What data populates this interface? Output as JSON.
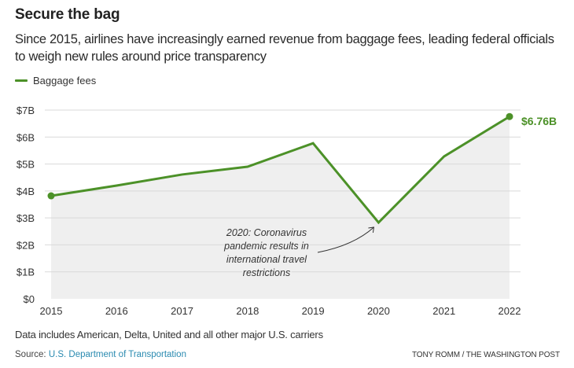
{
  "header": {
    "title": "Secure the bag",
    "subtitle": "Since 2015, airlines have increasingly earned revenue from baggage fees, leading federal officials to weigh new rules around price transparency"
  },
  "legend": {
    "label": "Baggage fees"
  },
  "footer": {
    "note": "Data includes American, Delta, United and all other major U.S. carriers",
    "source_prefix": "Source: ",
    "source_link": "U.S. Department of Transportation",
    "credit": "TONY ROMM / THE WASHINGTON POST"
  },
  "colors": {
    "line": "#4c9128",
    "area": "#efefef",
    "grid": "#d9d9d9",
    "label": "#4c9128"
  },
  "chart_data": {
    "type": "line",
    "title": "Secure the bag",
    "xlabel": "",
    "ylabel": "",
    "x": [
      2015,
      2016,
      2017,
      2018,
      2019,
      2020,
      2021,
      2022
    ],
    "series": [
      {
        "name": "Baggage fees",
        "values": [
          3.82,
          4.2,
          4.61,
          4.9,
          5.77,
          2.83,
          5.28,
          6.76
        ]
      }
    ],
    "ylim": [
      0,
      7
    ],
    "yticks": [
      0,
      1,
      2,
      3,
      4,
      5,
      6,
      7
    ],
    "ytick_labels": [
      "$0",
      "$1B",
      "$2B",
      "$3B",
      "$4B",
      "$5B",
      "$6B",
      "$7B"
    ],
    "xtick_labels": [
      "2015",
      "2016",
      "2017",
      "2018",
      "2019",
      "2020",
      "2021",
      "2022"
    ],
    "grid": true,
    "area_fill": true,
    "end_label": "$6.76B",
    "legend": "top-left",
    "annotation": {
      "x": 2020,
      "lines": [
        "2020: Coronavirus",
        "pandemic results in",
        "international travel",
        "restrictions"
      ]
    }
  }
}
